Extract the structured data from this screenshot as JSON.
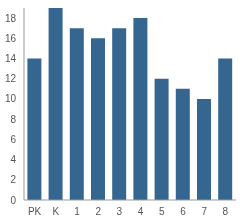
{
  "chart_data": {
    "type": "bar",
    "categories": [
      "PK",
      "K",
      "1",
      "2",
      "3",
      "4",
      "5",
      "6",
      "7",
      "8"
    ],
    "values": [
      14,
      19,
      17,
      16,
      17,
      18,
      12,
      11,
      10,
      14
    ],
    "color": "#35668f",
    "ylim": [
      0,
      19
    ],
    "yticks": [
      0,
      2,
      4,
      6,
      8,
      10,
      12,
      14,
      16,
      18
    ],
    "grid": false
  }
}
